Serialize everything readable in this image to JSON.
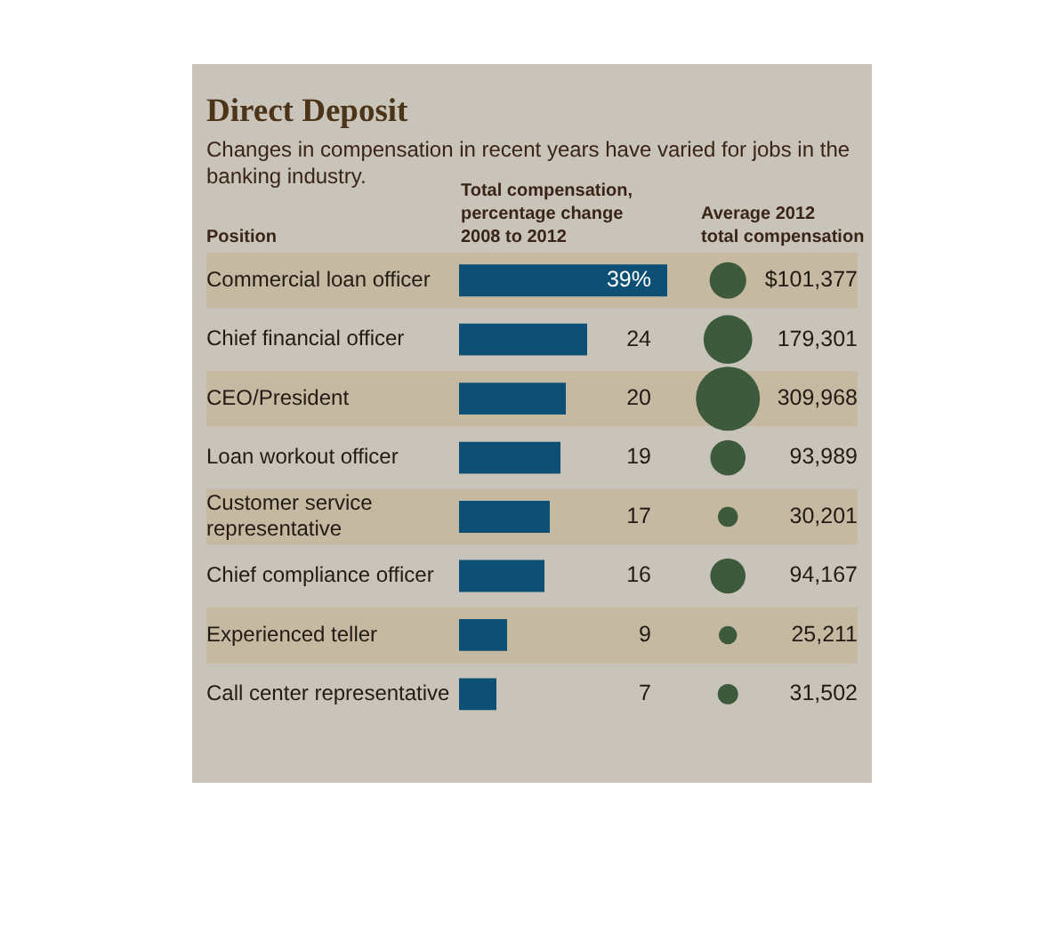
{
  "chart_data": [
    {
      "type": "bar",
      "title": "Direct Deposit",
      "subtitle": "Changes in compensation in recent years have varied for jobs in the banking industry.",
      "ylabel": "Position",
      "xlabel": "Total compensation,\npercentage change\n2008 to 2012",
      "orientation": "horizontal",
      "tick_labels": "y",
      "categories": [
        "Commercial loan officer",
        "Chief financial officer",
        "CEO/President",
        "Loan workout officer",
        "Customer service representative",
        "Chief compliance officer",
        "Experienced teller",
        "Call center representative"
      ],
      "values": [
        39,
        24,
        20,
        19,
        17,
        16,
        9,
        7
      ],
      "value_labels": [
        "39%",
        "24",
        "20",
        "19",
        "17",
        "16",
        "9",
        "7"
      ],
      "color": "#0e4f76"
    },
    {
      "type": "other",
      "xlabel": "Average 2012\ntotal compensation",
      "values": [
        101377,
        179301,
        309968,
        93989,
        30201,
        94167,
        25211,
        31502
      ],
      "value_labels": [
        "$101,377",
        "179,301",
        "309,968",
        "93,989",
        "30,201",
        "94,167",
        "25,211",
        "31,502"
      ],
      "color": "#3d5a3c"
    }
  ]
}
